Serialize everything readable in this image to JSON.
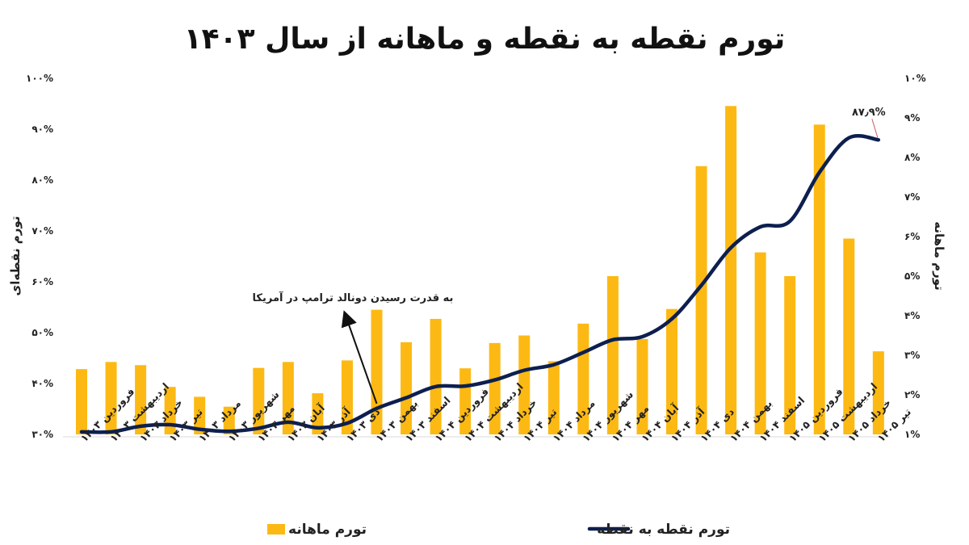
{
  "chart_data": {
    "type": "bar+line",
    "title": "تورم نقطه به نقطه و ماهانه از سال ۱۴۰۳",
    "categories": [
      "فروردین ۱۴۰۳",
      "اردیبهشت ۱۴۰۳",
      "خرداد ۱۴۰۳",
      "تیر ۱۴۰۳",
      "مرداد ۱۴۰۳",
      "شهریور ۱۴۰۳",
      "مهر ۱۴۰۳",
      "آبان ۱۴۰۳",
      "آذر ۱۴۰۳",
      "دی ۱۴۰۳",
      "بهمن ۱۴۰۳",
      "اسفند ۱۴۰۳",
      "فروردین ۱۴۰۴",
      "اردیبهشت ۱۴۰۴",
      "خرداد ۱۴۰۴",
      "تیر ۱۴۰۴",
      "مرداد ۱۴۰۴",
      "شهریور ۱۴۰۴",
      "مهر ۱۴۰۴",
      "آبان ۱۴۰۴",
      "آذر ۱۴۰۴",
      "دی ۱۴۰۴",
      "بهمن ۱۴۰۴",
      "اسفند ۱۴۰۴",
      "فروردین ۱۴۰۵",
      "اردیبهشت ۱۴۰۵",
      "خرداد ۱۴۰۵",
      "تیر ۱۴۰۵"
    ],
    "y_left": {
      "label": "تورم نقطه‌ای",
      "min": 30,
      "max": 100,
      "step": 10,
      "ticks": [
        "۳۰%",
        "۴۰%",
        "۵۰%",
        "۶۰%",
        "۷۰%",
        "۸۰%",
        "۹۰%",
        "۱۰۰%"
      ]
    },
    "y_right": {
      "label": "تورم ماهانه",
      "min": 1,
      "max": 10,
      "step": 1,
      "ticks": [
        "۱%",
        "۲%",
        "۳%",
        "۴%",
        "۵%",
        "۶%",
        "۷%",
        "۸%",
        "۹%",
        "۱۰%"
      ]
    },
    "series": [
      {
        "name": "تورم ماهانه",
        "type": "bar",
        "axis": "right",
        "color": "#FDB913",
        "values": [
          2.65,
          2.83,
          2.75,
          2.2,
          1.95,
          1.7,
          2.68,
          2.83,
          2.04,
          2.87,
          4.15,
          3.33,
          3.92,
          2.67,
          3.31,
          3.5,
          2.85,
          3.8,
          5.0,
          3.41,
          4.17,
          7.78,
          9.3,
          5.6,
          5.0,
          8.83,
          5.95,
          3.1
        ]
      },
      {
        "name": "تورم نقطه به نقطه",
        "type": "line",
        "axis": "left",
        "color": "#0D1F4F",
        "values": [
          30.5,
          30.5,
          31.6,
          31.9,
          31.0,
          30.6,
          31.2,
          32.4,
          31.3,
          32.2,
          35.1,
          37.2,
          39.4,
          39.5,
          40.7,
          42.6,
          43.7,
          46.1,
          48.6,
          49.2,
          52.7,
          59.3,
          66.7,
          70.8,
          71.9,
          81.5,
          88.3,
          87.9
        ]
      }
    ],
    "last_point_label": "۸۷٫۹%",
    "annotation": {
      "text": "به قدرت رسیدن دونالد ترامپ در آمریکا",
      "category_index": 10
    },
    "legend": {
      "position": "bottom"
    },
    "grid": false
  }
}
